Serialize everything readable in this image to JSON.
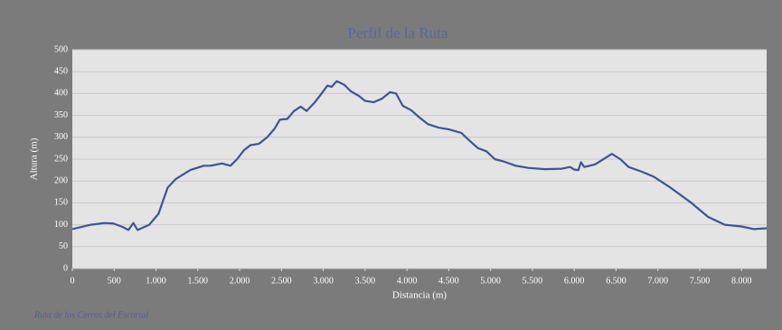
{
  "chart_data": {
    "type": "line",
    "title": "Perfil de la Ruta",
    "x_label": "Distancia (m)",
    "y_label": "Altura (m)",
    "footnote": "Ruta de los Cerros del Escorial",
    "x": [
      0,
      220,
      380,
      490,
      600,
      670,
      730,
      780,
      920,
      1030,
      1140,
      1240,
      1410,
      1570,
      1650,
      1790,
      1890,
      1970,
      2050,
      2130,
      2230,
      2330,
      2420,
      2480,
      2570,
      2650,
      2730,
      2800,
      2900,
      2980,
      3050,
      3100,
      3160,
      3250,
      3330,
      3420,
      3500,
      3600,
      3700,
      3800,
      3870,
      3950,
      4050,
      4150,
      4250,
      4380,
      4500,
      4650,
      4750,
      4850,
      4950,
      5050,
      5150,
      5300,
      5450,
      5650,
      5850,
      5950,
      6000,
      6050,
      6080,
      6120,
      6250,
      6450,
      6550,
      6650,
      6800,
      6950,
      7150,
      7400,
      7600,
      7800,
      8000,
      8150,
      8300
    ],
    "series": [
      {
        "name": "Altura",
        "color": "#3b5596",
        "values": [
          90,
          100,
          104,
          103,
          95,
          88,
          104,
          88,
          100,
          125,
          185,
          205,
          225,
          235,
          235,
          240,
          235,
          250,
          270,
          282,
          285,
          300,
          320,
          340,
          342,
          360,
          370,
          360,
          380,
          400,
          418,
          415,
          428,
          420,
          405,
          395,
          383,
          380,
          388,
          403,
          400,
          372,
          362,
          345,
          330,
          322,
          318,
          310,
          292,
          275,
          268,
          250,
          245,
          235,
          230,
          227,
          228,
          232,
          226,
          225,
          243,
          232,
          238,
          262,
          250,
          232,
          222,
          210,
          185,
          150,
          118,
          100,
          96,
          90,
          92
        ]
      }
    ],
    "xlim": [
      0,
      8300
    ],
    "ylim": [
      0,
      500
    ],
    "xticks": [
      0,
      500,
      {
        "value": 1000,
        "label": "1.000"
      },
      {
        "value": 1500,
        "label": "1.500"
      },
      {
        "value": 2000,
        "label": "2.000"
      },
      {
        "value": 2500,
        "label": "2.500"
      },
      {
        "value": 3000,
        "label": "3.000"
      },
      {
        "value": 3500,
        "label": "3.500"
      },
      {
        "value": 4000,
        "label": "4.000"
      },
      {
        "value": 4500,
        "label": "4.500"
      },
      {
        "value": 5000,
        "label": "5.000"
      },
      {
        "value": 5500,
        "label": "5.500"
      },
      {
        "value": 6000,
        "label": "6.000"
      },
      {
        "value": 6500,
        "label": "6.500"
      },
      {
        "value": 7000,
        "label": "7.000"
      },
      {
        "value": 7500,
        "label": "7.500"
      },
      {
        "value": 8000,
        "label": "8.000"
      }
    ],
    "yticks": [
      0,
      50,
      100,
      150,
      200,
      250,
      300,
      350,
      400,
      450,
      500
    ],
    "grid": true
  }
}
